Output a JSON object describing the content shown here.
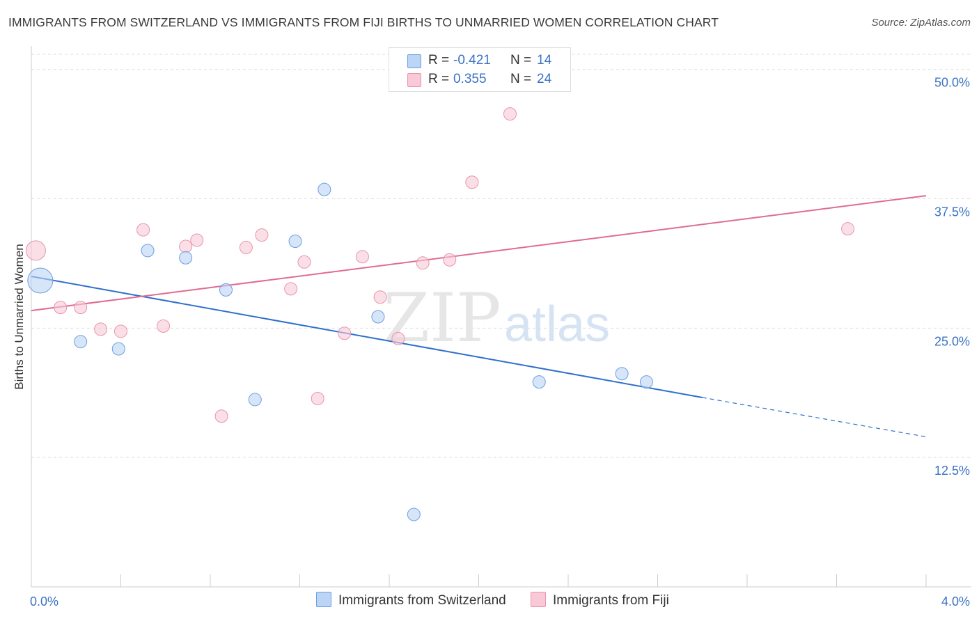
{
  "header": {
    "title": "IMMIGRANTS FROM SWITZERLAND VS IMMIGRANTS FROM FIJI BIRTHS TO UNMARRIED WOMEN CORRELATION CHART",
    "source": "Source: ZipAtlas.com"
  },
  "watermark": {
    "zip": "ZIP",
    "atlas": "atlas"
  },
  "legend": {
    "series": [
      {
        "r_label": "R =",
        "r_value": "-0.421",
        "n_label": "N =",
        "n_value": "14"
      },
      {
        "r_label": "R =",
        "r_value": "0.355",
        "n_label": "N =",
        "n_value": "24"
      }
    ]
  },
  "colors": {
    "switzerland_fill": "#bcd4f5",
    "switzerland_stroke": "#6b9ee0",
    "switzerland_line": "#2f6fcc",
    "fiji_fill": "#f9c9d7",
    "fiji_stroke": "#e893ad",
    "fiji_line": "#e06b94",
    "axis_text": "#3b73c4",
    "grid": "#dddddd"
  },
  "chart_data": {
    "type": "scatter",
    "title": "IMMIGRANTS FROM SWITZERLAND VS IMMIGRANTS FROM FIJI BIRTHS TO UNMARRIED WOMEN CORRELATION CHART",
    "xlabel": "",
    "ylabel": "Births to Unmarried Women",
    "xlim": [
      0,
      4
    ],
    "ylim": [
      0,
      52
    ],
    "x_tick_labels": [
      "0.0%",
      "4.0%"
    ],
    "y_ticks": [
      12.5,
      25.0,
      37.5,
      50.0
    ],
    "y_tick_labels": [
      "12.5%",
      "25.0%",
      "37.5%",
      "50.0%"
    ],
    "grid": "horizontal dashed",
    "legend_placement": "top-center and bottom",
    "series": [
      {
        "name": "Immigrants from Switzerland",
        "r": -0.421,
        "n": 14,
        "points": [
          {
            "x": 0.04,
            "y": 29.6,
            "size": 18
          },
          {
            "x": 0.22,
            "y": 23.7,
            "size": 9
          },
          {
            "x": 0.39,
            "y": 23.0,
            "size": 9
          },
          {
            "x": 0.52,
            "y": 32.5,
            "size": 9
          },
          {
            "x": 0.69,
            "y": 31.8,
            "size": 9
          },
          {
            "x": 0.87,
            "y": 28.7,
            "size": 9
          },
          {
            "x": 1.0,
            "y": 18.1,
            "size": 9
          },
          {
            "x": 1.18,
            "y": 33.4,
            "size": 9
          },
          {
            "x": 1.31,
            "y": 38.4,
            "size": 9
          },
          {
            "x": 1.55,
            "y": 26.1,
            "size": 9
          },
          {
            "x": 1.71,
            "y": 7.0,
            "size": 9
          },
          {
            "x": 2.27,
            "y": 19.8,
            "size": 9
          },
          {
            "x": 2.64,
            "y": 20.6,
            "size": 9
          },
          {
            "x": 2.75,
            "y": 19.8,
            "size": 9
          }
        ],
        "trend": {
          "x0": 0.0,
          "y0": 30.0,
          "x1": 3.0,
          "y1": 18.3,
          "dash_to_x": 4.0,
          "dash_to_y": 14.5
        }
      },
      {
        "name": "Immigrants from Fiji",
        "r": 0.355,
        "n": 24,
        "points": [
          {
            "x": 0.02,
            "y": 32.5,
            "size": 14
          },
          {
            "x": 0.13,
            "y": 27.0,
            "size": 9
          },
          {
            "x": 0.22,
            "y": 27.0,
            "size": 9
          },
          {
            "x": 0.31,
            "y": 24.9,
            "size": 9
          },
          {
            "x": 0.4,
            "y": 24.7,
            "size": 9
          },
          {
            "x": 0.5,
            "y": 34.5,
            "size": 9
          },
          {
            "x": 0.59,
            "y": 25.2,
            "size": 9
          },
          {
            "x": 0.69,
            "y": 32.9,
            "size": 9
          },
          {
            "x": 0.74,
            "y": 33.5,
            "size": 9
          },
          {
            "x": 0.85,
            "y": 16.5,
            "size": 9
          },
          {
            "x": 0.96,
            "y": 32.8,
            "size": 9
          },
          {
            "x": 1.03,
            "y": 34.0,
            "size": 9
          },
          {
            "x": 1.16,
            "y": 28.8,
            "size": 9
          },
          {
            "x": 1.22,
            "y": 31.4,
            "size": 9
          },
          {
            "x": 1.28,
            "y": 18.2,
            "size": 9
          },
          {
            "x": 1.4,
            "y": 24.5,
            "size": 9
          },
          {
            "x": 1.48,
            "y": 31.9,
            "size": 9
          },
          {
            "x": 1.56,
            "y": 28.0,
            "size": 9
          },
          {
            "x": 1.64,
            "y": 24.0,
            "size": 9
          },
          {
            "x": 1.75,
            "y": 31.3,
            "size": 9
          },
          {
            "x": 1.87,
            "y": 31.6,
            "size": 9
          },
          {
            "x": 1.97,
            "y": 39.1,
            "size": 9
          },
          {
            "x": 2.14,
            "y": 45.7,
            "size": 9
          },
          {
            "x": 3.65,
            "y": 34.6,
            "size": 9
          }
        ],
        "trend": {
          "x0": 0.0,
          "y0": 26.7,
          "x1": 4.0,
          "y1": 37.8
        }
      }
    ]
  }
}
